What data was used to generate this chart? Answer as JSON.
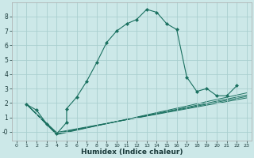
{
  "xlabel": "Humidex (Indice chaleur)",
  "bg_color": "#cce8e8",
  "grid_color": "#aacfcf",
  "line_color": "#1a7060",
  "xlim": [
    -0.5,
    23.5
  ],
  "ylim": [
    -0.6,
    9.0
  ],
  "xticks": [
    0,
    1,
    2,
    3,
    4,
    5,
    6,
    7,
    8,
    9,
    10,
    11,
    12,
    13,
    14,
    15,
    16,
    17,
    18,
    19,
    20,
    21,
    22,
    23
  ],
  "yticks": [
    0,
    1,
    2,
    3,
    4,
    5,
    6,
    7,
    8
  ],
  "ytick_labels": [
    "-0",
    "1",
    "2",
    "3",
    "4",
    "5",
    "6",
    "7",
    "8"
  ],
  "main_series": [
    [
      1,
      1.9
    ],
    [
      2,
      1.5
    ],
    [
      3,
      0.55
    ],
    [
      4,
      -0.15
    ],
    [
      5,
      0.65
    ],
    [
      5,
      1.6
    ],
    [
      6,
      2.4
    ],
    [
      7,
      3.5
    ],
    [
      8,
      4.8
    ],
    [
      9,
      6.2
    ],
    [
      10,
      7.0
    ],
    [
      11,
      7.5
    ],
    [
      12,
      7.8
    ],
    [
      13,
      8.5
    ],
    [
      14,
      8.3
    ],
    [
      15,
      7.5
    ],
    [
      16,
      7.1
    ],
    [
      17,
      3.8
    ],
    [
      18,
      2.8
    ],
    [
      19,
      3.0
    ],
    [
      20,
      2.5
    ],
    [
      21,
      2.5
    ],
    [
      22,
      3.2
    ]
  ],
  "trend_lines": [
    [
      [
        1,
        1.9
      ],
      [
        4,
        -0.2
      ],
      [
        23,
        2.7
      ]
    ],
    [
      [
        1,
        1.9
      ],
      [
        4,
        -0.15
      ],
      [
        23,
        2.55
      ]
    ],
    [
      [
        1,
        1.9
      ],
      [
        4,
        -0.1
      ],
      [
        23,
        2.45
      ]
    ],
    [
      [
        1,
        1.9
      ],
      [
        4,
        -0.05
      ],
      [
        23,
        2.35
      ]
    ]
  ]
}
